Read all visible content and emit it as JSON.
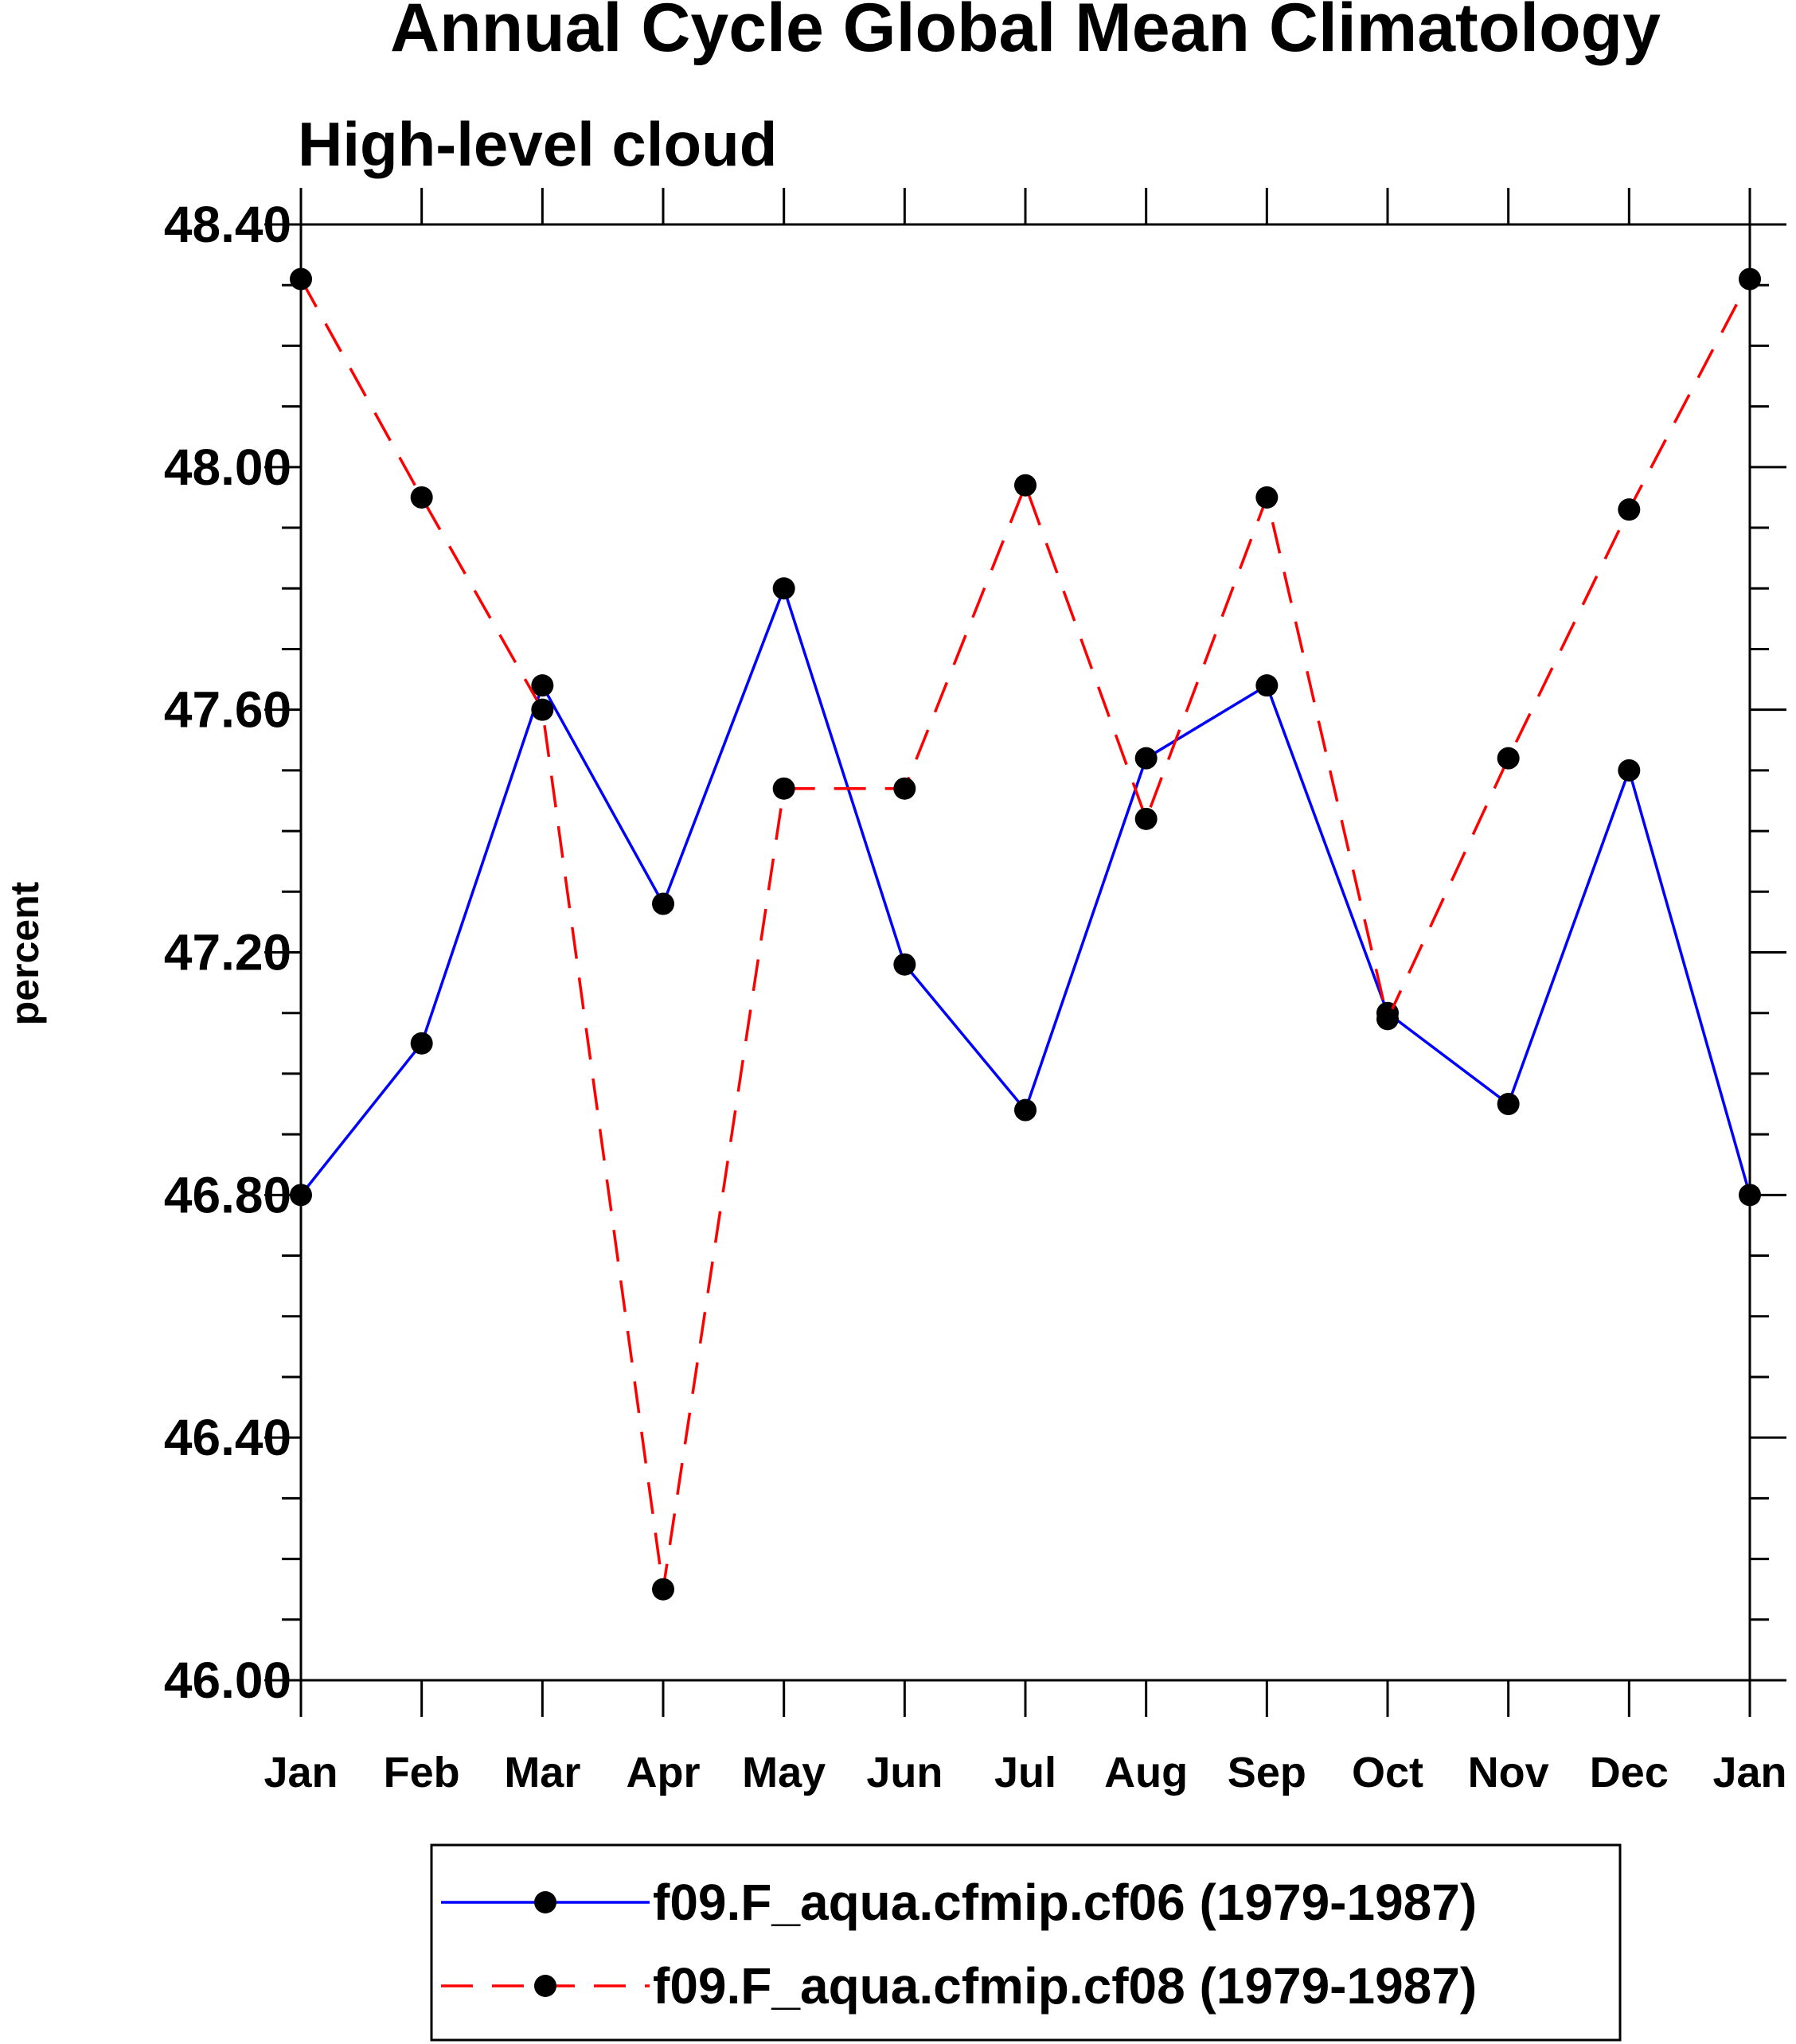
{
  "chart_data": {
    "type": "line",
    "title": "Annual Cycle Global Mean Climatology",
    "subtitle": "High-level cloud",
    "xlabel": "",
    "ylabel": "percent",
    "categories": [
      "Jan",
      "Feb",
      "Mar",
      "Apr",
      "May",
      "Jun",
      "Jul",
      "Aug",
      "Sep",
      "Oct",
      "Nov",
      "Dec",
      "Jan"
    ],
    "ylim": [
      46.0,
      48.4
    ],
    "yticks": [
      "46.00",
      "46.40",
      "46.80",
      "47.20",
      "47.60",
      "48.00",
      "48.40"
    ],
    "grid": false,
    "legend_position": "bottom-center",
    "series": [
      {
        "name": "f09.F_aqua.cfmip.cf06 (1979-1987)",
        "color": "#0000ff",
        "line_style": "solid",
        "marker": "circle",
        "values": [
          46.8,
          47.05,
          47.64,
          47.28,
          47.8,
          47.18,
          46.94,
          47.52,
          47.64,
          47.1,
          46.95,
          47.5,
          46.8
        ]
      },
      {
        "name": "f09.F_aqua.cfmip.cf08 (1979-1987)",
        "color": "#ff0000",
        "line_style": "dashed",
        "marker": "circle",
        "values": [
          48.31,
          47.95,
          47.6,
          46.15,
          47.47,
          47.47,
          47.97,
          47.42,
          47.95,
          47.09,
          47.52,
          47.93,
          48.31
        ]
      }
    ]
  }
}
